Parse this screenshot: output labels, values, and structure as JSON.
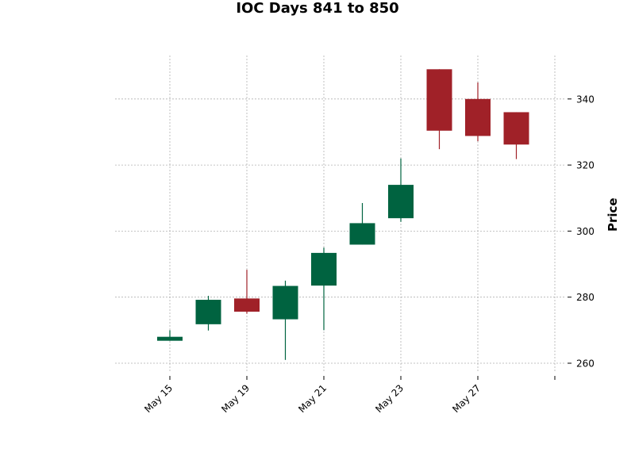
{
  "chart_data": {
    "type": "candlestick",
    "title": "IOC Days 841 to 850",
    "ylabel": "Price",
    "xlabel": "",
    "ylim": [
      256,
      354
    ],
    "grid": true,
    "y_ticks": [
      260,
      280,
      300,
      320,
      340
    ],
    "x_tick_labels": [
      "May 15",
      "May 19",
      "May 21",
      "May 23",
      "May 27",
      ""
    ],
    "x_tick_positions": [
      0,
      2,
      4,
      6,
      8,
      10
    ],
    "colors": {
      "up": "#006340",
      "down": "#a02128",
      "grid": "#b0b0b0"
    },
    "candles": [
      {
        "open": 266.8,
        "high": 270.0,
        "low": 266.8,
        "close": 268.0
      },
      {
        "open": 271.8,
        "high": 280.4,
        "low": 269.9,
        "close": 279.2
      },
      {
        "open": 279.6,
        "high": 288.3,
        "low": 275.0,
        "close": 275.6
      },
      {
        "open": 273.3,
        "high": 285.0,
        "low": 261.0,
        "close": 283.4
      },
      {
        "open": 283.5,
        "high": 295.0,
        "low": 270.0,
        "close": 293.4
      },
      {
        "open": 295.9,
        "high": 308.5,
        "low": 295.9,
        "close": 302.4
      },
      {
        "open": 303.9,
        "high": 322.0,
        "low": 302.8,
        "close": 314.0
      },
      {
        "open": 349.0,
        "high": 349.0,
        "low": 324.8,
        "close": 330.4
      },
      {
        "open": 340.0,
        "high": 345.0,
        "low": 327.2,
        "close": 328.8
      },
      {
        "open": 336.0,
        "high": 336.0,
        "low": 321.8,
        "close": 326.2
      }
    ]
  }
}
